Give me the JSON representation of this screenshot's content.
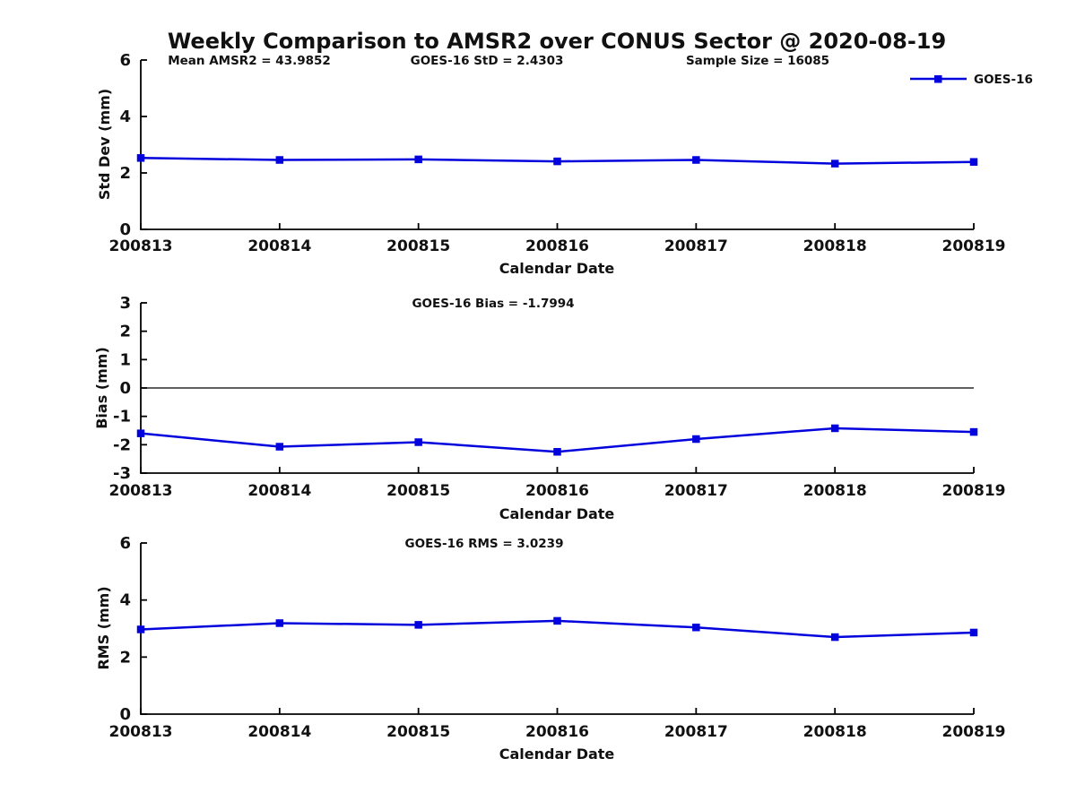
{
  "title": "Weekly Comparison to AMSR2 over CONUS Sector @ 2020-08-19",
  "legend": {
    "label": "GOES-16"
  },
  "colors": {
    "series_blue": "#0202dd",
    "axis_black": "#000000",
    "text_black": "#111111"
  },
  "chart_data": [
    {
      "type": "line",
      "name": "std-dev-panel",
      "annotations": [
        "Mean AMSR2 = 43.9852",
        "GOES-16 StD = 2.4303",
        "Sample Size = 16085"
      ],
      "ylabel": "Std Dev (mm)",
      "xlabel": "Calendar Date",
      "categories": [
        "200813",
        "200814",
        "200815",
        "200816",
        "200817",
        "200818",
        "200819"
      ],
      "series": [
        {
          "name": "GOES-16",
          "values": [
            2.53,
            2.46,
            2.48,
            2.41,
            2.46,
            2.33,
            2.39
          ]
        }
      ],
      "ylim": [
        0,
        6
      ],
      "yticks": [
        0,
        2,
        4,
        6
      ],
      "zero_line": false,
      "grid": false,
      "legend_position": "top-right-outside"
    },
    {
      "type": "line",
      "name": "bias-panel",
      "annotations": [
        "GOES-16 Bias  = -1.7994"
      ],
      "ylabel": "Bias (mm)",
      "xlabel": "Calendar Date",
      "categories": [
        "200813",
        "200814",
        "200815",
        "200816",
        "200817",
        "200818",
        "200819"
      ],
      "series": [
        {
          "name": "GOES-16",
          "values": [
            -1.6,
            -2.07,
            -1.91,
            -2.25,
            -1.8,
            -1.42,
            -1.55
          ]
        }
      ],
      "ylim": [
        -3,
        3
      ],
      "yticks": [
        3,
        2,
        1,
        0,
        -1,
        -2,
        -3
      ],
      "zero_line": true,
      "grid": false,
      "legend_position": "none"
    },
    {
      "type": "line",
      "name": "rms-panel",
      "annotations": [
        "GOES-16 RMS = 3.0239"
      ],
      "ylabel": "RMS (mm)",
      "xlabel": "Calendar Date",
      "categories": [
        "200813",
        "200814",
        "200815",
        "200816",
        "200817",
        "200818",
        "200819"
      ],
      "series": [
        {
          "name": "GOES-16",
          "values": [
            2.97,
            3.19,
            3.13,
            3.27,
            3.04,
            2.7,
            2.86
          ]
        }
      ],
      "ylim": [
        0,
        6
      ],
      "yticks": [
        0,
        2,
        4,
        6
      ],
      "zero_line": false,
      "grid": false,
      "legend_position": "none"
    }
  ]
}
